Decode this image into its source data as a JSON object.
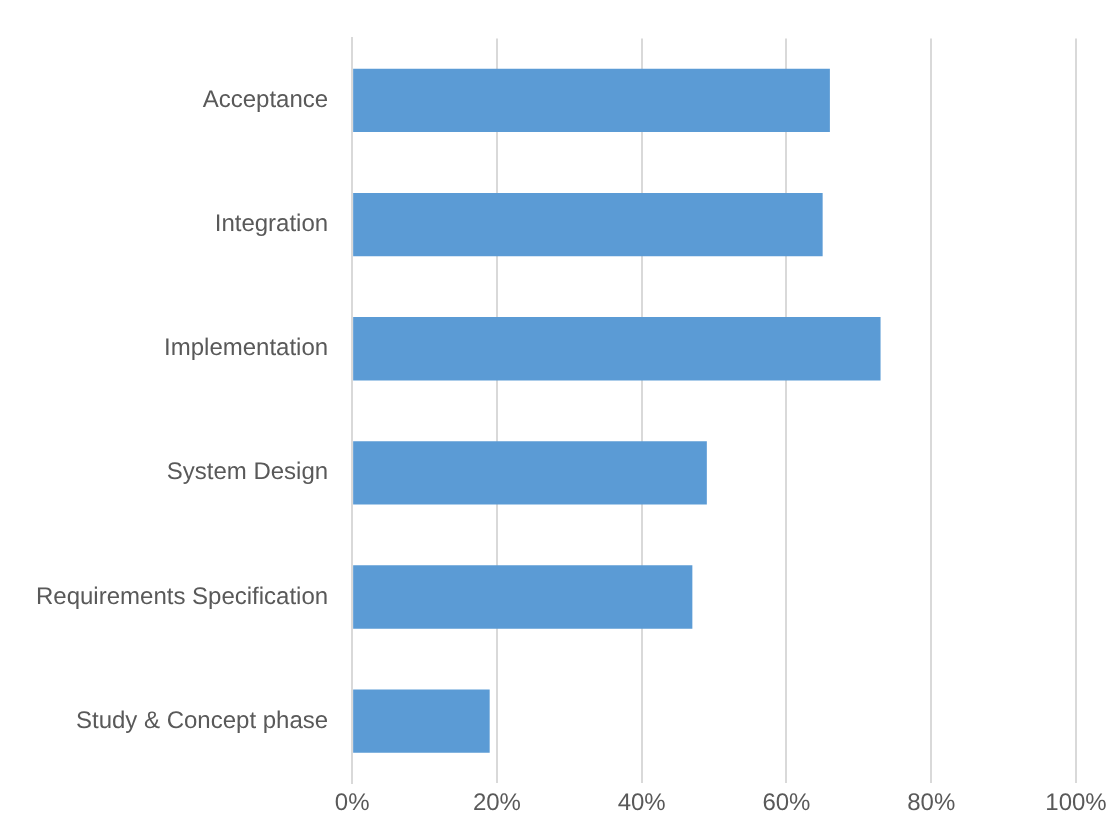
{
  "chart_data": {
    "type": "bar",
    "orientation": "horizontal",
    "categories": [
      "Acceptance",
      "Integration",
      "Implementation",
      "System Design",
      "Requirements Specification",
      "Study & Concept phase"
    ],
    "values": [
      66,
      65,
      73,
      49,
      47,
      19
    ],
    "color": "#5b9bd5",
    "xlim": [
      0,
      100
    ],
    "xticks": [
      {
        "value": 0,
        "label": "0%"
      },
      {
        "value": 20,
        "label": "20%"
      },
      {
        "value": 40,
        "label": "40%"
      },
      {
        "value": 60,
        "label": "60%"
      },
      {
        "value": 80,
        "label": "80%"
      },
      {
        "value": 100,
        "label": "100%"
      }
    ],
    "grid": "x",
    "legend": false
  }
}
